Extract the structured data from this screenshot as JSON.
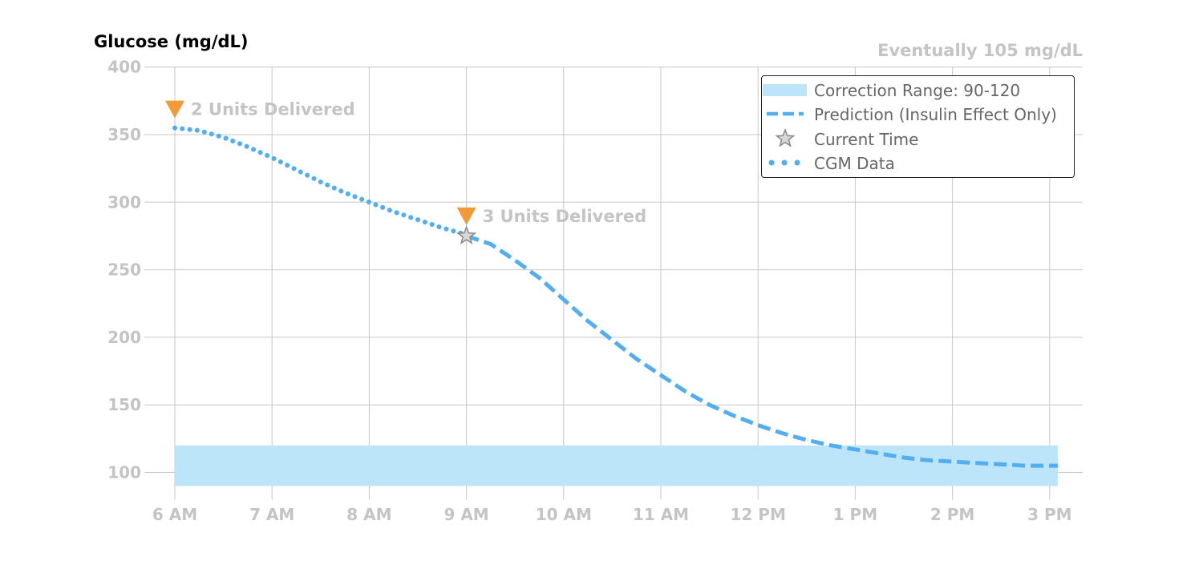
{
  "header": {
    "ylabel": "Glucose (mg/dL)",
    "eventually_text": "Eventually 105 mg/dL"
  },
  "colors": {
    "grid": "#c8c8c8",
    "tick_text": "#c4c4c4",
    "band": "#bde5fa",
    "series": "#52aef0",
    "marker": "#f29a38",
    "star": "#888888"
  },
  "legend": {
    "placement": "top-right",
    "items": [
      {
        "label": "Correction Range: 90-120",
        "symbol": "band-swatch"
      },
      {
        "label": "Prediction (Insulin Effect Only)",
        "symbol": "dashed-line"
      },
      {
        "label": "Current Time",
        "symbol": "star-icon"
      },
      {
        "label": "CGM Data",
        "symbol": "dotted-line"
      }
    ]
  },
  "chart_data": {
    "type": "line",
    "ylabel": "Glucose (mg/dL)",
    "xlabel": "",
    "ylim": [
      80,
      400
    ],
    "xlim": [
      "6:00",
      "15:20"
    ],
    "grid": true,
    "x_ticks": [
      "6 AM",
      "7 AM",
      "8 AM",
      "9 AM",
      "10 AM",
      "11 AM",
      "12 PM",
      "1 PM",
      "2 PM",
      "3 PM"
    ],
    "y_ticks": [
      100,
      150,
      200,
      250,
      300,
      350,
      400
    ],
    "correction_range": {
      "label": "Correction Range: 90-120",
      "low": 90,
      "high": 120,
      "x_start": "6:00",
      "x_end": "15:05"
    },
    "series": [
      {
        "name": "CGM Data",
        "style": "dotted",
        "x": [
          "6:00",
          "6:15",
          "6:30",
          "6:45",
          "7:00",
          "7:15",
          "7:30",
          "7:45",
          "8:00",
          "8:15",
          "8:30",
          "8:45",
          "9:00"
        ],
        "y": [
          355,
          353,
          348,
          341,
          333,
          324,
          315,
          307,
          300,
          293,
          287,
          281,
          276
        ]
      },
      {
        "name": "Prediction (Insulin Effect Only)",
        "style": "dashed",
        "x": [
          "9:00",
          "9:15",
          "9:30",
          "9:45",
          "10:00",
          "10:15",
          "10:30",
          "10:45",
          "11:00",
          "11:15",
          "11:30",
          "11:45",
          "12:00",
          "12:15",
          "12:30",
          "12:45",
          "13:00",
          "13:15",
          "13:30",
          "13:45",
          "14:00",
          "14:15",
          "14:30",
          "14:45",
          "15:05"
        ],
        "y": [
          275,
          269,
          257,
          244,
          228,
          212,
          198,
          184,
          172,
          160,
          150,
          142,
          135,
          129,
          124,
          120,
          117,
          114,
          111,
          109,
          108,
          107,
          106,
          105,
          105
        ]
      }
    ],
    "current_time": {
      "label": "Current Time",
      "x": "9:00",
      "y": 275
    },
    "annotations": [
      {
        "text": "2 Units Delivered",
        "x": "6:00",
        "y": 368
      },
      {
        "text": "3 Units Delivered",
        "x": "9:00",
        "y": 289
      }
    ]
  }
}
